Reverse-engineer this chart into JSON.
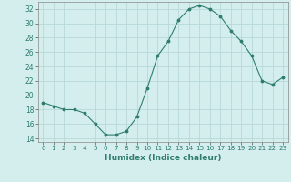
{
  "x": [
    0,
    1,
    2,
    3,
    4,
    5,
    6,
    7,
    8,
    9,
    10,
    11,
    12,
    13,
    14,
    15,
    16,
    17,
    18,
    19,
    20,
    21,
    22,
    23
  ],
  "y": [
    19,
    18.5,
    18,
    18,
    17.5,
    16,
    14.5,
    14.5,
    15,
    17,
    21,
    25.5,
    27.5,
    30.5,
    32,
    32.5,
    32,
    31,
    29,
    27.5,
    25.5,
    22,
    21.5,
    22.5
  ],
  "line_color": "#2e7d6e",
  "marker_color": "#2e7d6e",
  "bg_color": "#d4eeed",
  "grid_color": "#b8d8d8",
  "xlabel": "Humidex (Indice chaleur)",
  "ylim": [
    13.5,
    33
  ],
  "xlim": [
    -0.5,
    23.5
  ],
  "yticks": [
    14,
    16,
    18,
    20,
    22,
    24,
    26,
    28,
    30,
    32
  ],
  "xticks": [
    0,
    1,
    2,
    3,
    4,
    5,
    6,
    7,
    8,
    9,
    10,
    11,
    12,
    13,
    14,
    15,
    16,
    17,
    18,
    19,
    20,
    21,
    22,
    23
  ],
  "xtick_labels": [
    "0",
    "1",
    "2",
    "3",
    "4",
    "5",
    "6",
    "7",
    "8",
    "9",
    "10",
    "11",
    "12",
    "13",
    "14",
    "15",
    "16",
    "17",
    "18",
    "19",
    "20",
    "21",
    "22",
    "23"
  ]
}
